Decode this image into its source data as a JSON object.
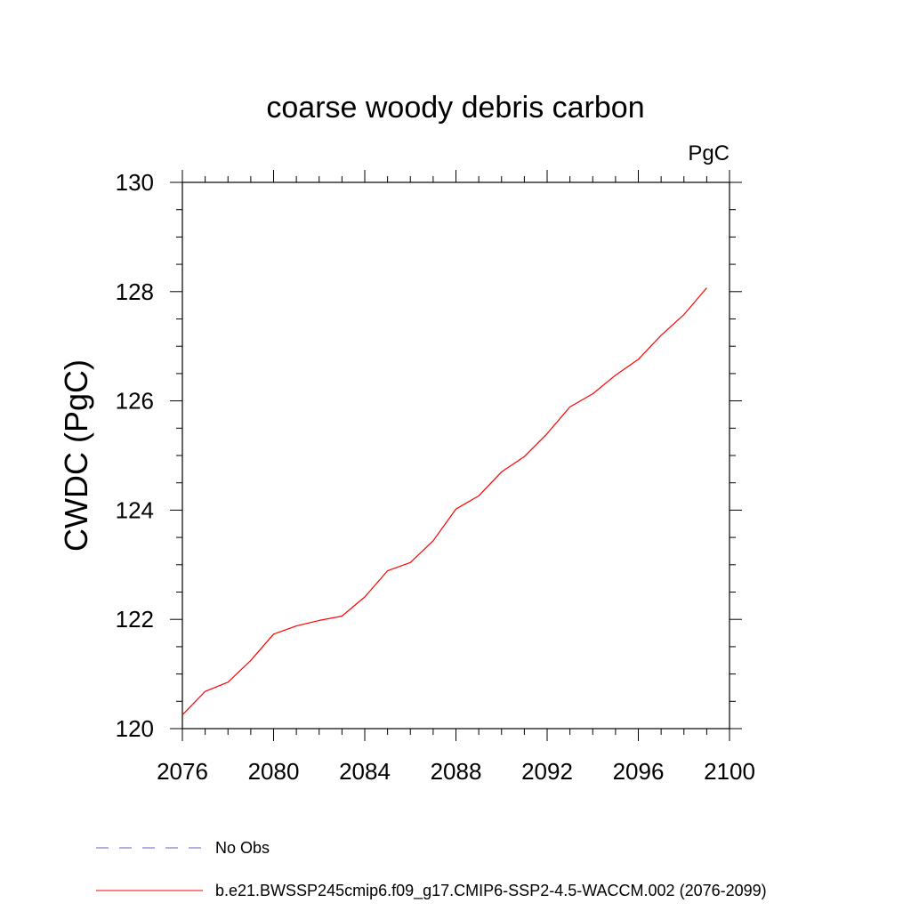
{
  "chart_data": {
    "type": "line",
    "title": "coarse woody debris carbon",
    "units_label": "PgC",
    "ylabel": "CWDC  (PgC)",
    "xlabel": "",
    "xlim": [
      2076,
      2100
    ],
    "ylim": [
      120,
      130
    ],
    "x_ticks": [
      "2076",
      "2080",
      "2084",
      "2088",
      "2092",
      "2096",
      "2100"
    ],
    "y_ticks": [
      "120",
      "122",
      "124",
      "126",
      "128",
      "130"
    ],
    "x_tick_values": [
      2076,
      2080,
      2084,
      2088,
      2092,
      2096,
      2100
    ],
    "y_tick_values": [
      120,
      122,
      124,
      126,
      128,
      130
    ],
    "x_minor_step": 1,
    "y_minor_step": 0.5,
    "grid": false,
    "legend_position": "bottom",
    "series": [
      {
        "name": "b.e21.BWSSP245cmip6.f09_g17.CMIP6-SSP2-4.5-WACCM.002 (2076-2099)",
        "color": "#ff0000",
        "style": "solid",
        "x": [
          2076,
          2077,
          2078,
          2079,
          2080,
          2081,
          2082,
          2083,
          2084,
          2085,
          2086,
          2087,
          2088,
          2089,
          2090,
          2091,
          2092,
          2093,
          2094,
          2095,
          2096,
          2097,
          2098,
          2099
        ],
        "y": [
          120.25,
          120.68,
          120.85,
          121.25,
          121.73,
          121.88,
          121.98,
          122.06,
          122.41,
          122.89,
          123.04,
          123.44,
          124.02,
          124.26,
          124.7,
          124.98,
          125.4,
          125.89,
          126.13,
          126.47,
          126.76,
          127.2,
          127.58,
          128.07
        ]
      }
    ],
    "legend": [
      {
        "label": "No Obs",
        "color": "#6a5acd",
        "style": "dashed"
      },
      {
        "label": "b.e21.BWSSP245cmip6.f09_g17.CMIP6-SSP2-4.5-WACCM.002 (2076-2099)",
        "color": "#ff0000",
        "style": "solid"
      }
    ]
  }
}
